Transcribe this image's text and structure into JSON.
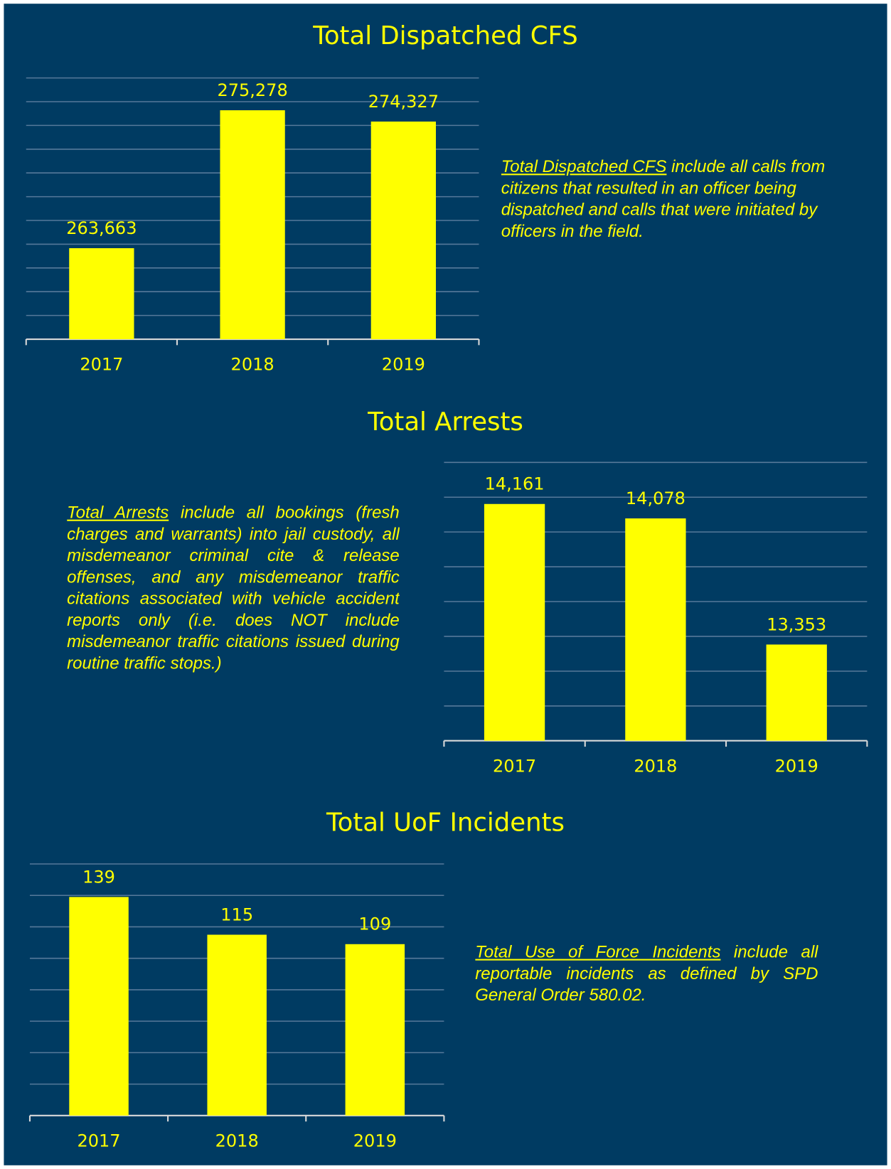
{
  "chart_data": [
    {
      "type": "bar",
      "title": "Total Dispatched CFS",
      "categories": [
        "2017",
        "2018",
        "2019"
      ],
      "values": [
        263663,
        275278,
        274327
      ],
      "value_labels": [
        "263,663",
        "275,278",
        "274,327"
      ],
      "color": "#ffff00",
      "ylim": [
        256000,
        278000
      ],
      "yticks": [
        256000,
        258000,
        260000,
        262000,
        264000,
        266000,
        268000,
        270000,
        272000,
        274000,
        276000,
        278000
      ],
      "grid": true,
      "note": {
        "term": "Total Dispatched CFS",
        "text": " include all calls from citizens that resulted in an officer being dispatched and calls that were initiated by officers in the field."
      }
    },
    {
      "type": "bar",
      "title": "Total Arrests",
      "categories": [
        "2017",
        "2018",
        "2019"
      ],
      "values": [
        14161,
        14078,
        13353
      ],
      "value_labels": [
        "14,161",
        "14,078",
        "13,353"
      ],
      "color": "#ffff00",
      "ylim": [
        12800,
        14400
      ],
      "yticks": [
        12800,
        13000,
        13200,
        13400,
        13600,
        13800,
        14000,
        14200,
        14400
      ],
      "grid": true,
      "note": {
        "term": "Total Arrests",
        "text": " include all bookings (fresh charges and warrants) into jail custody, all misdemeanor criminal cite & release offenses, and any misdemeanor traffic citations associated with vehicle accident reports only (i.e. does NOT include misdemeanor traffic citations issued during routine traffic stops.)"
      }
    },
    {
      "type": "bar",
      "title": "Total UoF Incidents",
      "categories": [
        "2017",
        "2018",
        "2019"
      ],
      "values": [
        139,
        115,
        109
      ],
      "color": "#ffff00",
      "ylim": [
        0,
        160
      ],
      "yticks": [
        0,
        20,
        40,
        60,
        80,
        100,
        120,
        140,
        160
      ],
      "grid": true,
      "note": {
        "term": "Total Use of Force Incidents",
        "text": " include all reportable incidents as defined by SPD General Order 580.02."
      }
    }
  ]
}
